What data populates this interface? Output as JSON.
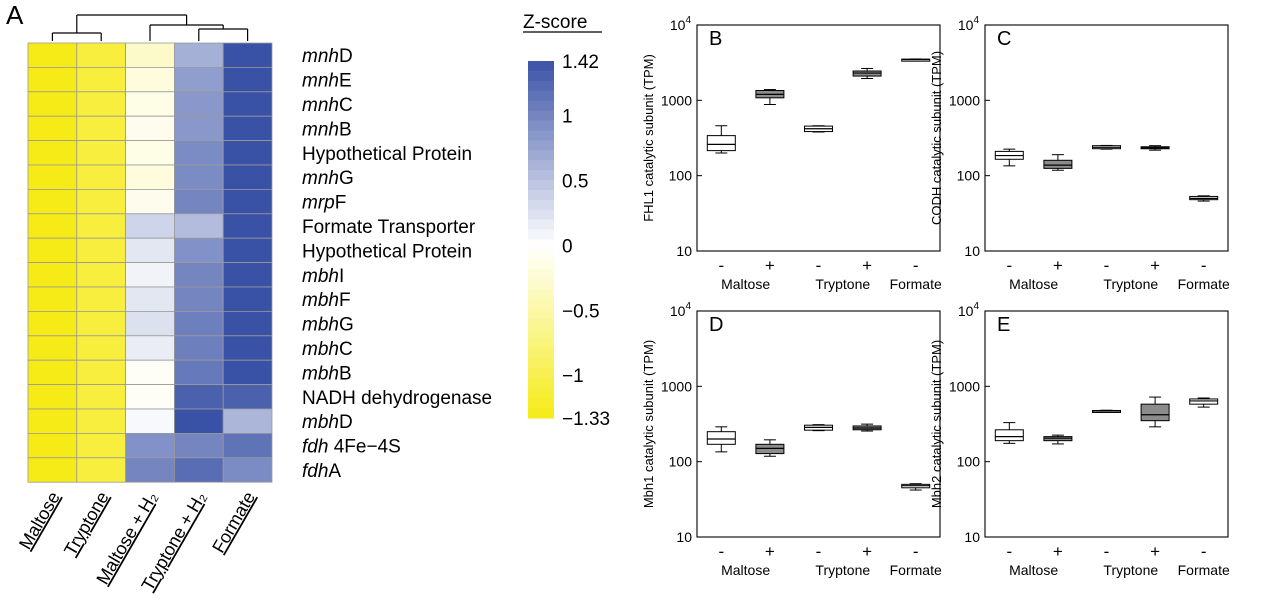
{
  "chart_data": [
    {
      "type": "heatmap",
      "panel": "A",
      "columns": [
        "Maltose",
        "Tryptone",
        "Maltose + H₂",
        "Tryptone + H₂",
        "Formate"
      ],
      "rows": [
        {
          "parts": [
            [
              "mnh",
              true
            ],
            [
              "D",
              false
            ]
          ],
          "values": [
            -1.33,
            -1.1,
            -0.3,
            0.65,
            1.42
          ]
        },
        {
          "parts": [
            [
              "mnh",
              true
            ],
            [
              "E",
              false
            ]
          ],
          "values": [
            -1.33,
            -1.1,
            -0.2,
            0.8,
            1.42
          ]
        },
        {
          "parts": [
            [
              "mnh",
              true
            ],
            [
              "C",
              false
            ]
          ],
          "values": [
            -1.33,
            -1.1,
            -0.15,
            0.85,
            1.42
          ]
        },
        {
          "parts": [
            [
              "mnh",
              true
            ],
            [
              "B",
              false
            ]
          ],
          "values": [
            -1.33,
            -1.1,
            -0.1,
            0.85,
            1.42
          ]
        },
        {
          "parts": [
            [
              "Hypothetical Protein",
              false
            ]
          ],
          "values": [
            -1.33,
            -1.1,
            -0.15,
            0.95,
            1.42
          ]
        },
        {
          "parts": [
            [
              "mnh",
              true
            ],
            [
              "G",
              false
            ]
          ],
          "values": [
            -1.33,
            -1.1,
            -0.2,
            0.95,
            1.42
          ]
        },
        {
          "parts": [
            [
              "mrp",
              true
            ],
            [
              "F",
              false
            ]
          ],
          "values": [
            -1.33,
            -1.1,
            -0.1,
            1.0,
            1.42
          ]
        },
        {
          "parts": [
            [
              "Formate Transporter",
              false
            ]
          ],
          "values": [
            -1.33,
            -1.1,
            0.35,
            0.55,
            1.42
          ]
        },
        {
          "parts": [
            [
              "Hypothetical Protein",
              false
            ]
          ],
          "values": [
            -1.33,
            -1.1,
            0.2,
            0.9,
            1.42
          ]
        },
        {
          "parts": [
            [
              "mbh",
              true
            ],
            [
              "I",
              false
            ]
          ],
          "values": [
            -1.33,
            -1.1,
            0.1,
            1.0,
            1.42
          ]
        },
        {
          "parts": [
            [
              "mbh",
              true
            ],
            [
              "F",
              false
            ]
          ],
          "values": [
            -1.33,
            -1.1,
            0.2,
            1.0,
            1.42
          ]
        },
        {
          "parts": [
            [
              "mbh",
              true
            ],
            [
              "G",
              false
            ]
          ],
          "values": [
            -1.33,
            -1.1,
            0.25,
            1.05,
            1.42
          ]
        },
        {
          "parts": [
            [
              "mbh",
              true
            ],
            [
              "C",
              false
            ]
          ],
          "values": [
            -1.33,
            -1.1,
            0.15,
            1.05,
            1.42
          ]
        },
        {
          "parts": [
            [
              "mbh",
              true
            ],
            [
              "B",
              false
            ]
          ],
          "values": [
            -1.33,
            -1.1,
            -0.05,
            1.1,
            1.42
          ]
        },
        {
          "parts": [
            [
              "NADH dehydrogenase",
              false
            ]
          ],
          "values": [
            -1.33,
            -1.1,
            -0.05,
            1.3,
            1.3
          ]
        },
        {
          "parts": [
            [
              "mbh",
              true
            ],
            [
              "D",
              false
            ]
          ],
          "values": [
            -1.33,
            -1.1,
            0.05,
            1.42,
            0.6
          ]
        },
        {
          "parts": [
            [
              "fdh",
              true
            ],
            [
              " 4Fe−4S",
              false
            ]
          ],
          "values": [
            -1.33,
            -1.1,
            0.9,
            1.0,
            1.15
          ]
        },
        {
          "parts": [
            [
              "fdh",
              true
            ],
            [
              "A",
              false
            ]
          ],
          "values": [
            -1.33,
            -1.1,
            1.0,
            1.2,
            0.95
          ]
        }
      ],
      "dendrogram": "columns",
      "colorbar": {
        "title": "Z-score",
        "min": -1.33,
        "max": 1.42,
        "ticks": [
          1.42,
          1,
          0.5,
          0,
          -0.5,
          -1,
          -1.33
        ],
        "tick_labels": [
          "1.42",
          "1",
          "0.5",
          "0",
          "−0.5",
          "−1",
          "−1.33"
        ],
        "low_color": "#f6eb16",
        "mid_color": "#ffffff",
        "high_color": "#3a52a6"
      }
    },
    {
      "type": "boxplot",
      "panel": "B",
      "ylabel": "FHL1 catalytic subunit (TPM)",
      "yscale": "log",
      "ylim": [
        10,
        10000
      ],
      "ytick_values": [
        10,
        100,
        1000,
        10000
      ],
      "ytick_labels": [
        "10",
        "100",
        "1000",
        "10^4"
      ],
      "signs": [
        "-",
        "+",
        "-",
        "+",
        "-"
      ],
      "groups": [
        "Maltose",
        "Tryptone",
        "Formate"
      ],
      "boxes": [
        {
          "sign": "-",
          "group": "Maltose",
          "fill": "white",
          "min": 200,
          "q1": 215,
          "median": 260,
          "q3": 340,
          "max": 460
        },
        {
          "sign": "+",
          "group": "Maltose",
          "fill": "gray",
          "min": 880,
          "q1": 1080,
          "median": 1200,
          "q3": 1350,
          "max": 1390
        },
        {
          "sign": "-",
          "group": "Tryptone",
          "fill": "white",
          "min": 380,
          "q1": 385,
          "median": 420,
          "q3": 455,
          "max": 460
        },
        {
          "sign": "+",
          "group": "Tryptone",
          "fill": "gray",
          "min": 1950,
          "q1": 2100,
          "median": 2300,
          "q3": 2450,
          "max": 2650
        },
        {
          "sign": "-",
          "group": "Formate",
          "fill": "white",
          "min": 3420,
          "q1": 3440,
          "median": 3480,
          "q3": 3520,
          "max": 3540
        }
      ]
    },
    {
      "type": "boxplot",
      "panel": "C",
      "ylabel": "CODH catalytic subunit (TPM)",
      "yscale": "log",
      "ylim": [
        10,
        10000
      ],
      "ytick_values": [
        10,
        100,
        1000,
        10000
      ],
      "ytick_labels": [
        "10",
        "100",
        "1000",
        "10^4"
      ],
      "signs": [
        "-",
        "+",
        "-",
        "+",
        "-"
      ],
      "groups": [
        "Maltose",
        "Tryptone",
        "Formate"
      ],
      "boxes": [
        {
          "sign": "-",
          "group": "Maltose",
          "fill": "white",
          "min": 135,
          "q1": 165,
          "median": 185,
          "q3": 210,
          "max": 225
        },
        {
          "sign": "+",
          "group": "Maltose",
          "fill": "gray",
          "min": 118,
          "q1": 125,
          "median": 138,
          "q3": 160,
          "max": 190
        },
        {
          "sign": "-",
          "group": "Tryptone",
          "fill": "white",
          "min": 225,
          "q1": 228,
          "median": 238,
          "q3": 250,
          "max": 252
        },
        {
          "sign": "+",
          "group": "Tryptone",
          "fill": "gray",
          "min": 218,
          "q1": 228,
          "median": 235,
          "q3": 242,
          "max": 250
        },
        {
          "sign": "-",
          "group": "Formate",
          "fill": "white",
          "min": 46,
          "q1": 48,
          "median": 50,
          "q3": 53,
          "max": 54
        }
      ]
    },
    {
      "type": "boxplot",
      "panel": "D",
      "ylabel": "Mbh1 catalytic subunit (TPM)",
      "yscale": "log",
      "ylim": [
        10,
        10000
      ],
      "ytick_values": [
        10,
        100,
        1000,
        10000
      ],
      "ytick_labels": [
        "10",
        "100",
        "1000",
        "10^4"
      ],
      "signs": [
        "-",
        "+",
        "-",
        "+",
        "-"
      ],
      "groups": [
        "Maltose",
        "Tryptone",
        "Formate"
      ],
      "boxes": [
        {
          "sign": "-",
          "group": "Maltose",
          "fill": "white",
          "min": 135,
          "q1": 170,
          "median": 200,
          "q3": 250,
          "max": 290
        },
        {
          "sign": "+",
          "group": "Maltose",
          "fill": "gray",
          "min": 118,
          "q1": 128,
          "median": 150,
          "q3": 170,
          "max": 195
        },
        {
          "sign": "-",
          "group": "Tryptone",
          "fill": "white",
          "min": 258,
          "q1": 262,
          "median": 285,
          "q3": 305,
          "max": 310
        },
        {
          "sign": "+",
          "group": "Tryptone",
          "fill": "gray",
          "min": 255,
          "q1": 265,
          "median": 280,
          "q3": 298,
          "max": 315
        },
        {
          "sign": "-",
          "group": "Formate",
          "fill": "white",
          "min": 42,
          "q1": 45,
          "median": 48,
          "q3": 50,
          "max": 51
        }
      ]
    },
    {
      "type": "boxplot",
      "panel": "E",
      "ylabel": "Mbh2 catalytic subunit (TPM)",
      "yscale": "log",
      "ylim": [
        10,
        10000
      ],
      "ytick_values": [
        10,
        100,
        1000,
        10000
      ],
      "ytick_labels": [
        "10",
        "100",
        "1000",
        "10^4"
      ],
      "signs": [
        "-",
        "+",
        "-",
        "+",
        "-"
      ],
      "groups": [
        "Maltose",
        "Tryptone",
        "Formate"
      ],
      "boxes": [
        {
          "sign": "-",
          "group": "Maltose",
          "fill": "white",
          "min": 175,
          "q1": 190,
          "median": 215,
          "q3": 265,
          "max": 330
        },
        {
          "sign": "+",
          "group": "Maltose",
          "fill": "gray",
          "min": 172,
          "q1": 190,
          "median": 205,
          "q3": 215,
          "max": 225
        },
        {
          "sign": "-",
          "group": "Tryptone",
          "fill": "white",
          "min": 455,
          "q1": 460,
          "median": 470,
          "q3": 478,
          "max": 482
        },
        {
          "sign": "+",
          "group": "Tryptone",
          "fill": "gray",
          "min": 290,
          "q1": 350,
          "median": 420,
          "q3": 580,
          "max": 720
        },
        {
          "sign": "-",
          "group": "Formate",
          "fill": "white",
          "min": 530,
          "q1": 580,
          "median": 640,
          "q3": 680,
          "max": 700
        }
      ]
    }
  ]
}
